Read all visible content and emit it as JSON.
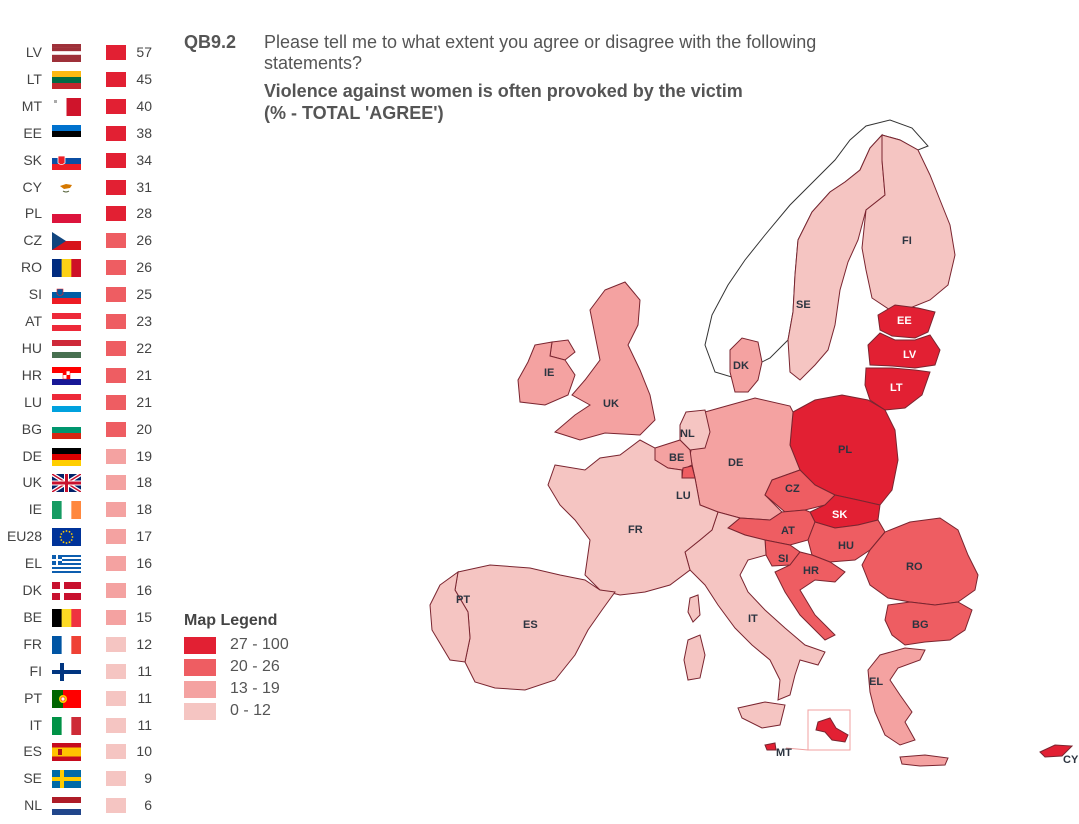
{
  "question": {
    "code": "QB9.2",
    "text": "Please tell me to what extent you agree or disagree with the following statements?",
    "statement": "Violence against women is often provoked by the victim",
    "measure": "(% - TOTAL 'AGREE')"
  },
  "map_legend": {
    "title": "Map Legend",
    "bands": [
      {
        "label": "27 - 100",
        "color": "#e22033"
      },
      {
        "label": "20 - 26",
        "color": "#ee5d62"
      },
      {
        "label": "13 - 19",
        "color": "#f4a2a1"
      },
      {
        "label": "0 - 12",
        "color": "#f5c5c2"
      }
    ]
  },
  "countries": [
    {
      "code": "LV",
      "value": "57",
      "color": "#e22033",
      "flag": "lv"
    },
    {
      "code": "LT",
      "value": "45",
      "color": "#e22033",
      "flag": "lt"
    },
    {
      "code": "MT",
      "value": "40",
      "color": "#e22033",
      "flag": "mt"
    },
    {
      "code": "EE",
      "value": "38",
      "color": "#e22033",
      "flag": "ee"
    },
    {
      "code": "SK",
      "value": "34",
      "color": "#e22033",
      "flag": "sk"
    },
    {
      "code": "CY",
      "value": "31",
      "color": "#e22033",
      "flag": "cy"
    },
    {
      "code": "PL",
      "value": "28",
      "color": "#e22033",
      "flag": "pl"
    },
    {
      "code": "CZ",
      "value": "26",
      "color": "#ee5d62",
      "flag": "cz"
    },
    {
      "code": "RO",
      "value": "26",
      "color": "#ee5d62",
      "flag": "ro"
    },
    {
      "code": "SI",
      "value": "25",
      "color": "#ee5d62",
      "flag": "si"
    },
    {
      "code": "AT",
      "value": "23",
      "color": "#ee5d62",
      "flag": "at"
    },
    {
      "code": "HU",
      "value": "22",
      "color": "#ee5d62",
      "flag": "hu"
    },
    {
      "code": "HR",
      "value": "21",
      "color": "#ee5d62",
      "flag": "hr"
    },
    {
      "code": "LU",
      "value": "21",
      "color": "#ee5d62",
      "flag": "lu"
    },
    {
      "code": "BG",
      "value": "20",
      "color": "#ee5d62",
      "flag": "bg"
    },
    {
      "code": "DE",
      "value": "19",
      "color": "#f4a2a1",
      "flag": "de"
    },
    {
      "code": "UK",
      "value": "18",
      "color": "#f4a2a1",
      "flag": "uk"
    },
    {
      "code": "IE",
      "value": "18",
      "color": "#f4a2a1",
      "flag": "ie"
    },
    {
      "code": "EU28",
      "value": "17",
      "color": "#f4a2a1",
      "flag": "eu"
    },
    {
      "code": "EL",
      "value": "16",
      "color": "#f4a2a1",
      "flag": "el"
    },
    {
      "code": "DK",
      "value": "16",
      "color": "#f4a2a1",
      "flag": "dk"
    },
    {
      "code": "BE",
      "value": "15",
      "color": "#f4a2a1",
      "flag": "be"
    },
    {
      "code": "FR",
      "value": "12",
      "color": "#f5c5c2",
      "flag": "fr"
    },
    {
      "code": "FI",
      "value": "11",
      "color": "#f5c5c2",
      "flag": "fi"
    },
    {
      "code": "PT",
      "value": "11",
      "color": "#f5c5c2",
      "flag": "pt"
    },
    {
      "code": "IT",
      "value": "11",
      "color": "#f5c5c2",
      "flag": "it"
    },
    {
      "code": "ES",
      "value": "10",
      "color": "#f5c5c2",
      "flag": "es"
    },
    {
      "code": "SE",
      "value": "9",
      "color": "#f5c5c2",
      "flag": "se"
    },
    {
      "code": "NL",
      "value": "6",
      "color": "#f5c5c2",
      "flag": "nl"
    }
  ]
}
